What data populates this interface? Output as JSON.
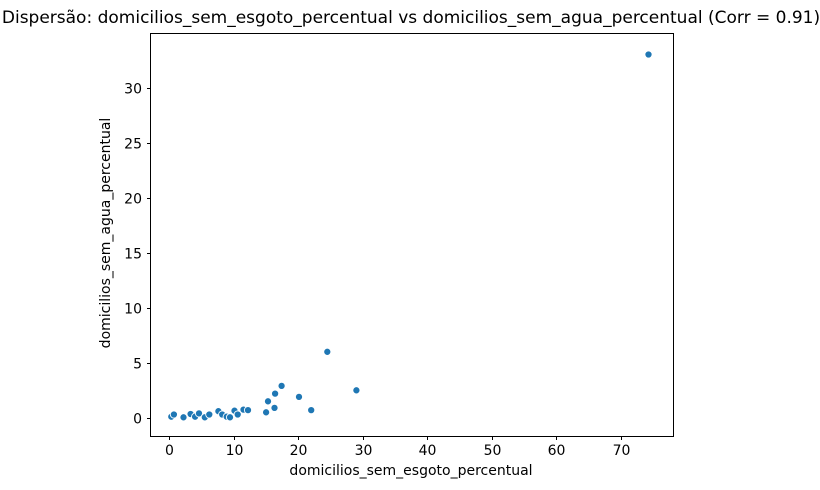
{
  "chart_data": {
    "type": "scatter",
    "title": "Dispersão: domicilios_sem_esgoto_percentual vs domicilios_sem_agua_percentual (Corr = 0.91)",
    "xlabel": "domicilios_sem_esgoto_percentual",
    "ylabel": "domicilios_sem_agua_percentual",
    "correlation": 0.91,
    "xticks": [
      0,
      10,
      20,
      30,
      40,
      50,
      60,
      70
    ],
    "yticks": [
      0,
      5,
      10,
      15,
      20,
      25,
      30
    ],
    "xlim": [
      -3.0,
      78.1
    ],
    "ylim": [
      -1.65,
      34.95
    ],
    "grid": false,
    "legend": false,
    "marker_color": "#1f77b4",
    "marker_edge_color": "#ffffff",
    "axis_color": "#000000",
    "background_color": "#ffffff",
    "points": [
      [
        0.3,
        0.1
      ],
      [
        0.7,
        0.3
      ],
      [
        2.2,
        0.05
      ],
      [
        3.3,
        0.35
      ],
      [
        4.0,
        0.1
      ],
      [
        4.6,
        0.4
      ],
      [
        5.5,
        0.05
      ],
      [
        6.2,
        0.3
      ],
      [
        7.6,
        0.6
      ],
      [
        8.2,
        0.3
      ],
      [
        8.9,
        0.1
      ],
      [
        9.4,
        0.05
      ],
      [
        10.1,
        0.65
      ],
      [
        10.6,
        0.3
      ],
      [
        11.5,
        0.75
      ],
      [
        12.2,
        0.7
      ],
      [
        15.0,
        0.5
      ],
      [
        15.3,
        1.5
      ],
      [
        16.3,
        0.9
      ],
      [
        16.4,
        2.2
      ],
      [
        17.4,
        2.9
      ],
      [
        20.1,
        1.9
      ],
      [
        22.0,
        0.7
      ],
      [
        24.5,
        6.0
      ],
      [
        29.0,
        2.5
      ],
      [
        74.3,
        33.0
      ]
    ]
  }
}
